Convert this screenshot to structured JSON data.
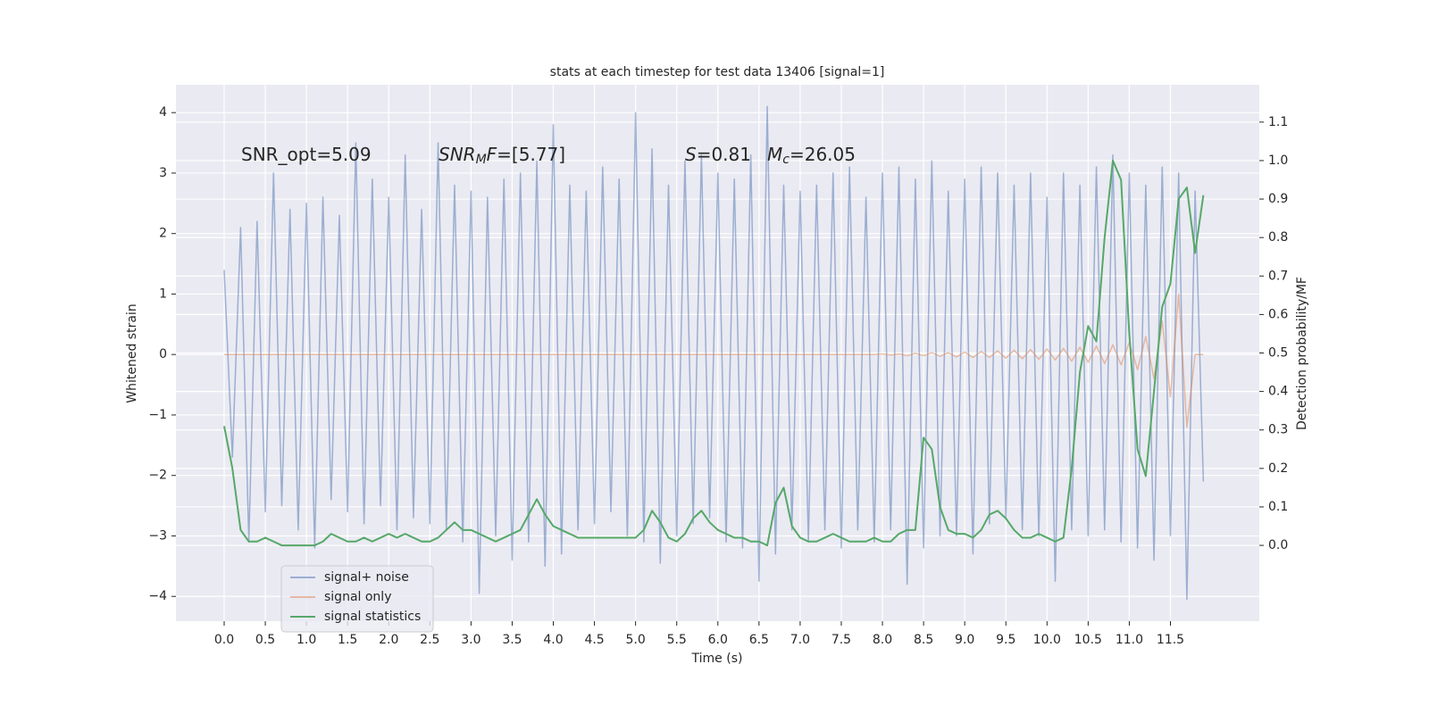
{
  "chart_data": {
    "type": "line",
    "title": "stats at each timestep for test data 13406 [signal=1]",
    "xlabel": "Time (s)",
    "ylabel": "Whitened strain",
    "y2label": "Detection probability/MF",
    "annotations": [
      [
        {
          "text": "SNR_opt=5.09"
        }
      ],
      [
        {
          "text": "SNR",
          "italic": true
        },
        {
          "text": "M",
          "italic": true,
          "sub": true
        },
        {
          "text": "F",
          "italic": true
        },
        {
          "text": "=[5.77]"
        }
      ],
      [
        {
          "text": "S",
          "italic": true
        },
        {
          "text": "=0.81"
        }
      ],
      [
        {
          "text": "M",
          "italic": true
        },
        {
          "text": "c",
          "italic": true,
          "sub": true
        },
        {
          "text": "=26.05"
        }
      ]
    ],
    "grid": true,
    "legend": "lower left",
    "xlim": [
      -0.586,
      12.58
    ],
    "ylim": [
      -4.41,
      4.46
    ],
    "y2lim": [
      -0.197,
      1.197
    ],
    "xticks": [
      {
        "value": 0,
        "label": "0.0"
      },
      {
        "value": 0.5,
        "label": "0.5"
      },
      {
        "value": 1,
        "label": "1.0"
      },
      {
        "value": 1.5,
        "label": "1.5"
      },
      {
        "value": 2,
        "label": "2.0"
      },
      {
        "value": 2.5,
        "label": "2.5"
      },
      {
        "value": 3,
        "label": "3.0"
      },
      {
        "value": 3.5,
        "label": "3.5"
      },
      {
        "value": 4,
        "label": "4.0"
      },
      {
        "value": 4.5,
        "label": "4.5"
      },
      {
        "value": 5,
        "label": "5.0"
      },
      {
        "value": 5.5,
        "label": "5.5"
      },
      {
        "value": 6,
        "label": "6.0"
      },
      {
        "value": 6.5,
        "label": "6.5"
      },
      {
        "value": 7,
        "label": "7.0"
      },
      {
        "value": 7.5,
        "label": "7.5"
      },
      {
        "value": 8,
        "label": "8.0"
      },
      {
        "value": 8.5,
        "label": "8.5"
      },
      {
        "value": 9,
        "label": "9.0"
      },
      {
        "value": 9.5,
        "label": "9.5"
      },
      {
        "value": 10,
        "label": "10.0"
      },
      {
        "value": 10.5,
        "label": "10.5"
      },
      {
        "value": 11,
        "label": "11.0"
      },
      {
        "value": 11.5,
        "label": "11.5"
      }
    ],
    "yticks": [
      {
        "value": -4,
        "label": "−4"
      },
      {
        "value": -3,
        "label": "−3"
      },
      {
        "value": -2,
        "label": "−2"
      },
      {
        "value": -1,
        "label": "−1"
      },
      0,
      1,
      2,
      3,
      4
    ],
    "y2ticks": [
      {
        "value": 0,
        "label": "0.0"
      },
      {
        "value": 0.1,
        "label": "0.1"
      },
      {
        "value": 0.2,
        "label": "0.2"
      },
      {
        "value": 0.3,
        "label": "0.3"
      },
      {
        "value": 0.4,
        "label": "0.4"
      },
      {
        "value": 0.5,
        "label": "0.5"
      },
      {
        "value": 0.6,
        "label": "0.6"
      },
      {
        "value": 0.7,
        "label": "0.7"
      },
      {
        "value": 0.8,
        "label": "0.8"
      },
      {
        "value": 0.9,
        "label": "0.9"
      },
      {
        "value": 1,
        "label": "1.0"
      },
      {
        "value": 1.1,
        "label": "1.1"
      }
    ],
    "x": [
      0,
      0.1,
      0.2,
      0.3,
      0.4,
      0.5,
      0.6,
      0.7,
      0.8,
      0.9,
      1,
      1.1,
      1.2,
      1.3,
      1.4,
      1.5,
      1.6,
      1.7,
      1.8,
      1.9,
      2,
      2.1,
      2.2,
      2.3,
      2.4,
      2.5,
      2.6,
      2.7,
      2.8,
      2.9,
      3,
      3.1,
      3.2,
      3.3,
      3.4,
      3.5,
      3.6,
      3.7,
      3.8,
      3.9,
      4,
      4.1,
      4.2,
      4.3,
      4.4,
      4.5,
      4.6,
      4.7,
      4.8,
      4.9,
      5,
      5.1,
      5.2,
      5.3,
      5.4,
      5.5,
      5.6,
      5.7,
      5.8,
      5.9,
      6,
      6.1,
      6.2,
      6.3,
      6.4,
      6.5,
      6.6,
      6.7,
      6.8,
      6.9,
      7,
      7.1,
      7.2,
      7.3,
      7.4,
      7.5,
      7.6,
      7.7,
      7.8,
      7.9,
      8,
      8.1,
      8.2,
      8.3,
      8.4,
      8.5,
      8.6,
      8.7,
      8.8,
      8.9,
      9,
      9.1,
      9.2,
      9.3,
      9.4,
      9.5,
      9.6,
      9.7,
      9.8,
      9.9,
      10,
      10.1,
      10.2,
      10.3,
      10.4,
      10.5,
      10.6,
      10.7,
      10.8,
      10.9,
      11,
      11.1,
      11.2,
      11.3,
      11.4,
      11.5,
      11.6,
      11.7,
      11.8,
      11.9
    ],
    "series": [
      {
        "name": "signal+ noise",
        "color": "#4c72b0",
        "opacity": 0.5,
        "values": [
          1.4,
          -1.7,
          2.1,
          -3.1,
          2.2,
          -2.6,
          3.0,
          -2.5,
          2.4,
          -2.9,
          2.5,
          -3.2,
          2.6,
          -2.4,
          2.3,
          -2.6,
          3.5,
          -2.8,
          2.9,
          -2.5,
          2.6,
          -2.9,
          3.3,
          -2.7,
          2.4,
          -2.8,
          3.5,
          -2.9,
          2.8,
          -3.1,
          2.7,
          -3.95,
          2.6,
          -3.0,
          2.9,
          -3.4,
          3.0,
          -3.1,
          3.2,
          -3.5,
          3.8,
          -3.3,
          2.8,
          -2.9,
          2.7,
          -2.8,
          3.1,
          -2.6,
          2.9,
          -3.0,
          4.0,
          -3.1,
          3.4,
          -3.45,
          2.8,
          -3.0,
          3.2,
          -2.8,
          3.3,
          -2.7,
          3.0,
          -3.1,
          2.9,
          -3.2,
          3.3,
          -3.75,
          4.1,
          -3.3,
          2.8,
          -2.9,
          2.7,
          -3.1,
          2.8,
          -2.9,
          3.0,
          -3.2,
          3.1,
          -2.9,
          2.6,
          -3.1,
          3.0,
          -2.9,
          3.1,
          -3.8,
          2.9,
          -3.2,
          3.2,
          -3.0,
          2.7,
          -3.0,
          2.9,
          -3.3,
          3.1,
          -2.8,
          3.0,
          -2.7,
          2.8,
          -2.9,
          3.0,
          -3.0,
          2.6,
          -3.75,
          3.0,
          -2.9,
          2.8,
          -3.0,
          3.1,
          -2.9,
          3.3,
          -3.1,
          3.0,
          -3.2,
          2.8,
          -3.4,
          3.1,
          -3.0,
          3.0,
          -4.05,
          2.7,
          -2.1
        ]
      },
      {
        "name": "signal only",
        "color": "#dd8452",
        "opacity": 0.5,
        "values": [
          0,
          0,
          0,
          0,
          0,
          0,
          0,
          0,
          0,
          0,
          0,
          0,
          0,
          0,
          0,
          0,
          0,
          0,
          0,
          0,
          0,
          0,
          0,
          0,
          0,
          0,
          0,
          0,
          0,
          0,
          0,
          0,
          0,
          0,
          0,
          0,
          0,
          0,
          0,
          0,
          0,
          0,
          0,
          0,
          0,
          0,
          0,
          0,
          0,
          0,
          0,
          0,
          0,
          0,
          0,
          0,
          0,
          0,
          0,
          0,
          0,
          0,
          0,
          0,
          0,
          0,
          0,
          0,
          0,
          0,
          0,
          0,
          0,
          0,
          0,
          0,
          0,
          0,
          0,
          0,
          0.01,
          -0.01,
          0.01,
          -0.02,
          0.02,
          -0.02,
          0.03,
          -0.03,
          0.03,
          -0.04,
          0.04,
          -0.05,
          0.05,
          -0.05,
          0.06,
          -0.06,
          0.07,
          -0.07,
          0.08,
          -0.08,
          0.09,
          -0.09,
          0.1,
          -0.11,
          0.12,
          -0.13,
          0.14,
          -0.15,
          0.16,
          -0.17,
          0.2,
          -0.25,
          0.3,
          -0.4,
          0.55,
          -0.7,
          1.0,
          -1.2,
          0,
          0
        ]
      },
      {
        "name": "signal statistics",
        "color": "#55a868",
        "opacity": 1,
        "axis": "y2",
        "values": [
          0.31,
          0.2,
          0.04,
          0.01,
          0.01,
          0.02,
          0.01,
          0.0,
          0.0,
          0.0,
          0.0,
          0.0,
          0.01,
          0.03,
          0.02,
          0.01,
          0.01,
          0.02,
          0.01,
          0.02,
          0.03,
          0.02,
          0.03,
          0.02,
          0.01,
          0.01,
          0.02,
          0.04,
          0.06,
          0.04,
          0.04,
          0.03,
          0.02,
          0.01,
          0.02,
          0.03,
          0.04,
          0.08,
          0.12,
          0.08,
          0.05,
          0.04,
          0.03,
          0.02,
          0.02,
          0.02,
          0.02,
          0.02,
          0.02,
          0.02,
          0.02,
          0.04,
          0.09,
          0.06,
          0.02,
          0.01,
          0.03,
          0.07,
          0.09,
          0.06,
          0.04,
          0.03,
          0.02,
          0.02,
          0.01,
          0.01,
          0.0,
          0.11,
          0.15,
          0.05,
          0.02,
          0.01,
          0.01,
          0.02,
          0.03,
          0.02,
          0.01,
          0.01,
          0.01,
          0.02,
          0.01,
          0.01,
          0.03,
          0.04,
          0.04,
          0.28,
          0.25,
          0.1,
          0.04,
          0.03,
          0.03,
          0.02,
          0.04,
          0.08,
          0.09,
          0.07,
          0.04,
          0.02,
          0.02,
          0.03,
          0.02,
          0.01,
          0.02,
          0.2,
          0.45,
          0.57,
          0.53,
          0.8,
          1.0,
          0.95,
          0.55,
          0.25,
          0.18,
          0.4,
          0.62,
          0.68,
          0.9,
          0.93,
          0.76,
          0.91
        ]
      }
    ]
  }
}
